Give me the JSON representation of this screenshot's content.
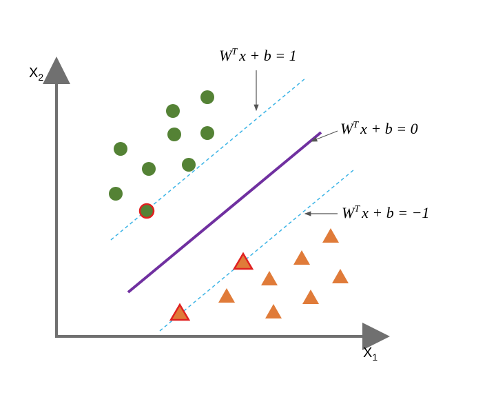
{
  "axes": {
    "x_label": {
      "main": "X",
      "sub": "1"
    },
    "y_label": {
      "main": "X",
      "sub": "2"
    }
  },
  "hyperplanes": [
    {
      "w": "W",
      "sup": "T",
      "rest": "x + b = 1"
    },
    {
      "w": "W",
      "sup": "T",
      "rest": "x + b = 0"
    },
    {
      "w": "W",
      "sup": "T",
      "rest": "x + b = −1"
    }
  ]
}
